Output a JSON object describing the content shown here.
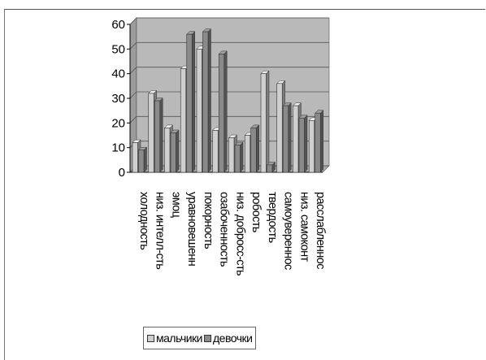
{
  "chart_data": {
    "type": "bar",
    "title": "",
    "xlabel": "",
    "ylabel": "",
    "ylim": [
      0,
      60
    ],
    "yticks": [
      0,
      10,
      20,
      30,
      40,
      50,
      60
    ],
    "grid": true,
    "legend_position": "bottom",
    "categories": [
      "холодность",
      "низ. интелл-сть",
      "эмоц",
      "уравновешенн",
      "покорность",
      "озабоченность",
      "низ. добросс-сть",
      "робость",
      "твердость",
      "самоуверенность",
      "низ. самоконт",
      "расслабленность"
    ],
    "tick_labels": [
      "холодность",
      "низ. интелл-сть",
      "эмоц",
      "уравновешенн",
      "покорность",
      "озабоченность",
      "низ. добросс-сть",
      "робость",
      "твердость",
      "самоувереннос",
      "низ. самоконт",
      "расслабленнос"
    ],
    "series": [
      {
        "name": "мальчики",
        "values": [
          12,
          32,
          18,
          42,
          50,
          17,
          14,
          15,
          40,
          36,
          27,
          21
        ],
        "color": "#cfcfcf"
      },
      {
        "name": "девочки",
        "values": [
          9,
          29,
          16,
          56,
          57,
          48,
          11,
          18,
          3,
          27,
          22,
          24
        ],
        "color": "#8a8a8a"
      }
    ],
    "plot_background": "#b9b9b9"
  }
}
